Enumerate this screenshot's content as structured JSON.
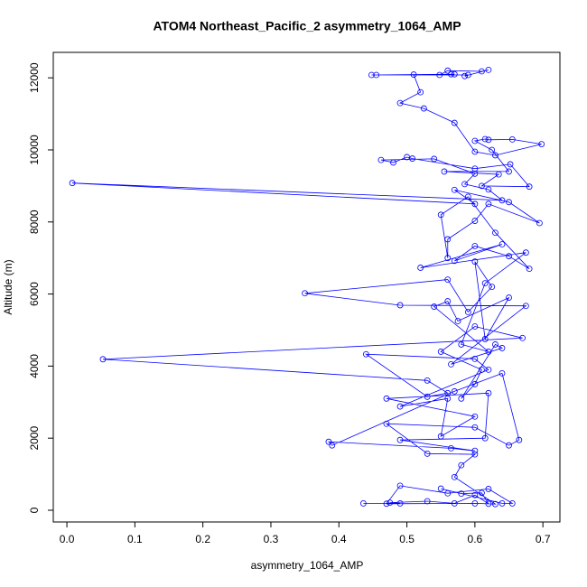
{
  "chart_data": {
    "type": "line",
    "title": "ATOM4 Northeast_Pacific_2 asymmetry_1064_AMP",
    "x_label": "asymmetry_1064_AMP",
    "y_label": "Altitude (m)",
    "xlim": [
      -0.02,
      0.725
    ],
    "ylim": [
      -326,
      12706
    ],
    "xticks": [
      {
        "value": 0,
        "label": "0.0"
      },
      0.1,
      0.2,
      0.3,
      0.4,
      0.5,
      0.6,
      0.7
    ],
    "yticks": [
      0,
      2000,
      4000,
      6000,
      8000,
      10000,
      12000
    ],
    "marker": "open-circle",
    "x": [
      0.436,
      0.49,
      0.475,
      0.53,
      0.57,
      0.6,
      0.62,
      0.61,
      0.58,
      0.55,
      0.64,
      0.655,
      0.62,
      0.56,
      0.49,
      0.47,
      0.6,
      0.63,
      0.57,
      0.58,
      0.6,
      0.53,
      0.47,
      0.6,
      0.65,
      0.665,
      0.64,
      0.57,
      0.39,
      0.385,
      0.565,
      0.6,
      0.49,
      0.615,
      0.62,
      0.47,
      0.6,
      0.55,
      0.56,
      0.49,
      0.62,
      0.6,
      0.44,
      0.53,
      0.56,
      0.53,
      0.053,
      0.67,
      0.6,
      0.55,
      0.61,
      0.6,
      0.58,
      0.63,
      0.64,
      0.565,
      0.675,
      0.49,
      0.35,
      0.56,
      0.59,
      0.625,
      0.6,
      0.615,
      0.65,
      0.575,
      0.56,
      0.54,
      0.62,
      0.58,
      0.615,
      0.675,
      0.52,
      0.64,
      0.57,
      0.6,
      0.65,
      0.68,
      0.63,
      0.59,
      0.55,
      0.56,
      0.56,
      0.6,
      0.62,
      0.695,
      0.65,
      0.57,
      0.6,
      0.008,
      0.64,
      0.62,
      0.585,
      0.6,
      0.54,
      0.462,
      0.48,
      0.5,
      0.508,
      0.6,
      0.652,
      0.68,
      0.61,
      0.635,
      0.555,
      0.65,
      0.625,
      0.6,
      0.615,
      0.62,
      0.655,
      0.698,
      0.63,
      0.6,
      0.57,
      0.525,
      0.49,
      0.52,
      0.51,
      0.548,
      0.56,
      0.61,
      0.62,
      0.585,
      0.59,
      0.448,
      0.455,
      0.57,
      0.565
    ],
    "series": [
      {
        "color": "#0000ff",
        "values": [
          190,
          190,
          210,
          250,
          190,
          420,
          180,
          480,
          460,
          600,
          190,
          190,
          590,
          470,
          680,
          180,
          190,
          170,
          920,
          1250,
          1550,
          1570,
          2400,
          2300,
          1800,
          1950,
          3800,
          3300,
          1800,
          1900,
          1720,
          1650,
          1950,
          2000,
          3250,
          3100,
          2600,
          2050,
          3100,
          2880,
          3900,
          4200,
          4330,
          3150,
          3250,
          3600,
          4190,
          4780,
          5100,
          4400,
          3900,
          3500,
          3100,
          4600,
          4500,
          4050,
          5670,
          5690,
          6020,
          6400,
          5500,
          6200,
          6900,
          4750,
          5900,
          5250,
          5800,
          5650,
          4400,
          4600,
          6300,
          7150,
          6730,
          7380,
          6920,
          7330,
          7050,
          6700,
          7700,
          8700,
          8200,
          7000,
          7520,
          8030,
          8500,
          7970,
          8550,
          8890,
          8500,
          9080,
          8600,
          8900,
          9050,
          9340,
          9750,
          9720,
          9650,
          9800,
          9760,
          9480,
          9600,
          8980,
          9000,
          9320,
          9400,
          9400,
          10000,
          10250,
          10300,
          10280,
          10290,
          10160,
          9850,
          9950,
          10750,
          11150,
          11300,
          11600,
          12090,
          12080,
          12200,
          12180,
          12220,
          12050,
          12080,
          12080,
          12080,
          12100,
          12100
        ]
      }
    ]
  }
}
